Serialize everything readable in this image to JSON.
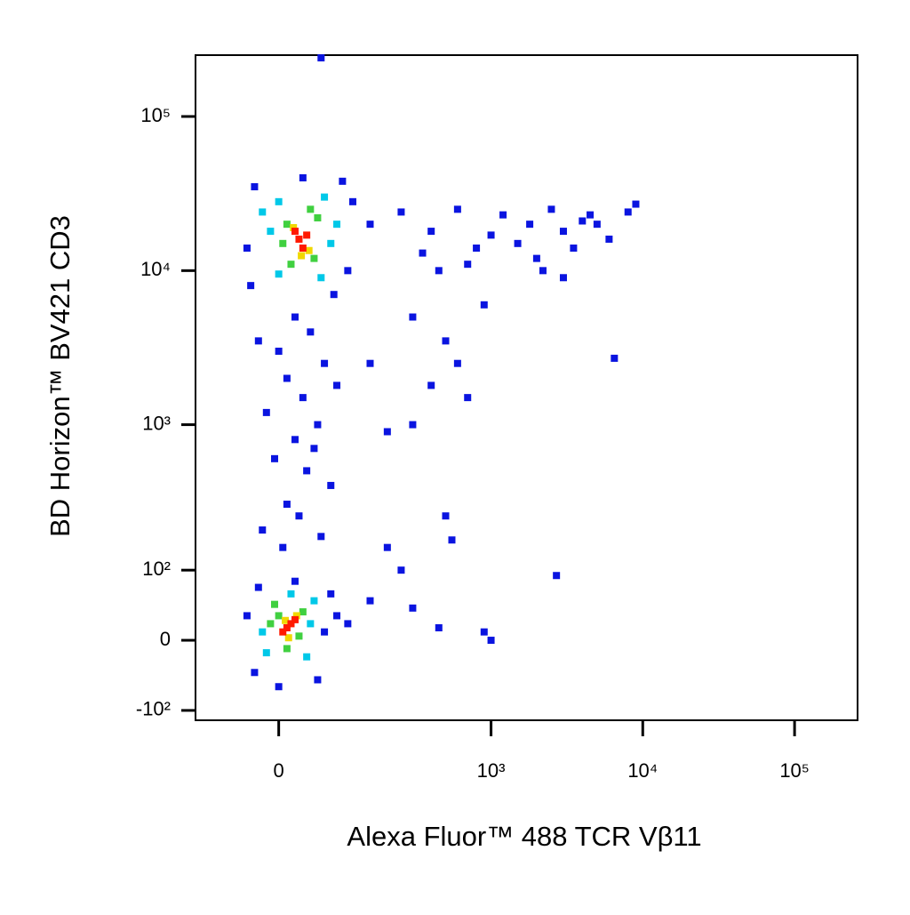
{
  "chart_data": {
    "type": "scatter",
    "xlabel": "Alexa Fluor™ 488 TCR Vβ11",
    "ylabel": "BD Horizon™ BV421 CD3",
    "scale": "biexponential",
    "xlim": [
      -130,
      260000
    ],
    "ylim": [
      -120,
      250000
    ],
    "xticks": [
      {
        "value": 0,
        "label": "0"
      },
      {
        "value": 1000,
        "label": "10³"
      },
      {
        "value": 10000,
        "label": "10⁴"
      },
      {
        "value": 100000,
        "label": "10⁵"
      }
    ],
    "yticks": [
      {
        "value": 100000,
        "label": "10⁵"
      },
      {
        "value": 10000,
        "label": "10⁴"
      },
      {
        "value": 1000,
        "label": "10³"
      },
      {
        "value": 100,
        "label": "10²"
      },
      {
        "value": 0,
        "label": "0"
      },
      {
        "value": -100,
        "label": "-10²"
      }
    ],
    "series": [
      {
        "color": "#0a14e0",
        "x": [
          -30,
          90,
          -40,
          100,
          30,
          110,
          -35,
          75,
          20,
          40,
          0,
          60,
          10,
          30,
          -15,
          50,
          20,
          -5,
          35,
          70,
          10,
          25,
          -20,
          55,
          5,
          45,
          80,
          -25,
          -40,
          60,
          -30,
          70,
          20,
          -25,
          50,
          80,
          0,
          100,
          150,
          250,
          400,
          600,
          800,
          1000,
          1500,
          2000,
          2500,
          3000,
          3500,
          4000,
          5000,
          6000,
          8000,
          9000,
          1200,
          700,
          2200,
          3000,
          450,
          350,
          1800,
          4500,
          300,
          500,
          600,
          700,
          400,
          6500,
          900,
          300,
          150,
          200,
          500,
          550,
          2700,
          900,
          1000,
          450,
          300,
          250,
          200,
          150,
          55
        ],
        "y": [
          35000,
          38000,
          14000,
          10000,
          40000,
          28000,
          8000,
          7000,
          5000,
          4000,
          3000,
          2500,
          2000,
          1500,
          1200,
          1000,
          800,
          600,
          500,
          400,
          300,
          250,
          200,
          180,
          150,
          700,
          1800,
          3500,
          30,
          10,
          -40,
          60,
          80,
          70,
          -50,
          30,
          -60,
          20,
          20000,
          24000,
          18000,
          25000,
          14000,
          17000,
          15000,
          12000,
          25000,
          18000,
          14000,
          21000,
          20000,
          16000,
          24000,
          27000,
          23000,
          11000,
          10000,
          9000,
          10000,
          13000,
          20000,
          23000,
          5000,
          3500,
          2500,
          1500,
          1800,
          2700,
          6000,
          1000,
          2500,
          900,
          250,
          170,
          90,
          10,
          0,
          15,
          40,
          100,
          150,
          50,
          240000
        ]
      },
      {
        "color": "#00c8e8",
        "x": [
          0,
          60,
          -10,
          70,
          55,
          0,
          -20,
          80,
          -20,
          40,
          15,
          35,
          -15,
          45
        ],
        "y": [
          28000,
          30000,
          18000,
          15000,
          9000,
          9500,
          24000,
          20000,
          10,
          20,
          60,
          -20,
          -15,
          50
        ]
      },
      {
        "color": "#40d040",
        "x": [
          10,
          45,
          50,
          5,
          40,
          15,
          0,
          25,
          -10,
          30,
          10,
          -5
        ],
        "y": [
          20000,
          12000,
          22000,
          15000,
          25000,
          11000,
          30,
          5,
          20,
          35,
          -10,
          45
        ]
      },
      {
        "color": "#f0d800",
        "x": [
          18,
          38,
          28,
          8,
          22,
          12
        ],
        "y": [
          19000,
          13500,
          12500,
          24,
          30,
          3
        ]
      },
      {
        "color": "#ff1a00",
        "x": [
          25,
          30,
          20,
          35,
          10,
          15,
          5,
          20
        ],
        "y": [
          16000,
          14000,
          18000,
          17000,
          15,
          20,
          10,
          25
        ]
      }
    ]
  }
}
